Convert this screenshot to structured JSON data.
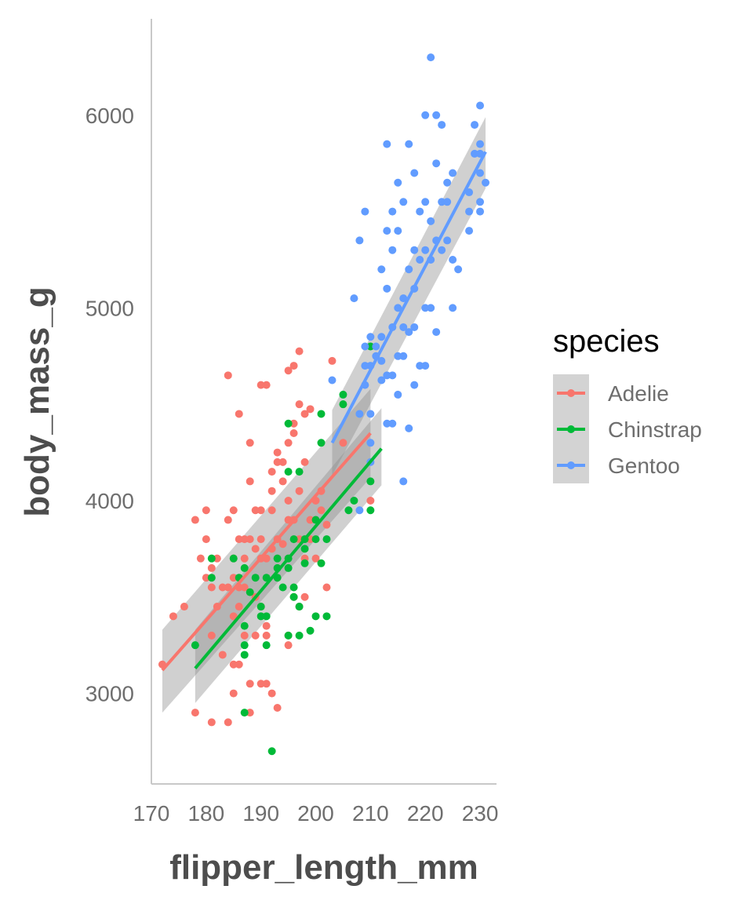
{
  "chart_data": {
    "type": "scatter",
    "xlabel": "flipper_length_mm",
    "ylabel": "body_mass_g",
    "xlim": [
      170,
      233
    ],
    "ylim": [
      2530,
      6500
    ],
    "xticks": [
      170,
      180,
      190,
      200,
      210,
      220,
      230
    ],
    "yticks": [
      3000,
      4000,
      5000,
      6000
    ],
    "grid": false,
    "legend": {
      "title": "species",
      "placement": "right"
    },
    "series": [
      {
        "name": "Adelie",
        "color": "#F8766D",
        "fit": {
          "x": [
            172,
            210
          ],
          "y": [
            3120,
            4350
          ],
          "band_start": [
            2900,
            3330
          ],
          "band_end": [
            4120,
            4580
          ]
        },
        "points": [
          [
            172,
            3150
          ],
          [
            174,
            3400
          ],
          [
            176,
            3450
          ],
          [
            178,
            3900
          ],
          [
            178,
            2900
          ],
          [
            179,
            3700
          ],
          [
            180,
            3950
          ],
          [
            180,
            3800
          ],
          [
            180,
            3600
          ],
          [
            181,
            3550
          ],
          [
            181,
            3650
          ],
          [
            181,
            3300
          ],
          [
            181,
            2850
          ],
          [
            182,
            3700
          ],
          [
            182,
            3450
          ],
          [
            183,
            3550
          ],
          [
            183,
            3200
          ],
          [
            184,
            3900
          ],
          [
            184,
            4650
          ],
          [
            184,
            3550
          ],
          [
            184,
            2850
          ],
          [
            185,
            3700
          ],
          [
            185,
            3950
          ],
          [
            185,
            3600
          ],
          [
            185,
            3400
          ],
          [
            185,
            3150
          ],
          [
            185,
            3000
          ],
          [
            186,
            3450
          ],
          [
            186,
            4450
          ],
          [
            186,
            3800
          ],
          [
            186,
            3550
          ],
          [
            186,
            3150
          ],
          [
            187,
            3300
          ],
          [
            187,
            3700
          ],
          [
            187,
            3800
          ],
          [
            187,
            3550
          ],
          [
            188,
            4300
          ],
          [
            188,
            4100
          ],
          [
            188,
            3800
          ],
          [
            188,
            3050
          ],
          [
            188,
            2900
          ],
          [
            189,
            3950
          ],
          [
            189,
            3750
          ],
          [
            189,
            3500
          ],
          [
            189,
            3300
          ],
          [
            190,
            3950
          ],
          [
            190,
            4600
          ],
          [
            190,
            3450
          ],
          [
            190,
            3050
          ],
          [
            190,
            3700
          ],
          [
            190,
            3800
          ],
          [
            191,
            4600
          ],
          [
            191,
            3700
          ],
          [
            191,
            3350
          ],
          [
            191,
            3050
          ],
          [
            191,
            3300
          ],
          [
            192,
            3950
          ],
          [
            192,
            4150
          ],
          [
            192,
            4050
          ],
          [
            192,
            3750
          ],
          [
            192,
            3000
          ],
          [
            193,
            4250
          ],
          [
            193,
            3800
          ],
          [
            193,
            4200
          ],
          [
            193,
            2925
          ],
          [
            194,
            4200
          ],
          [
            194,
            4100
          ],
          [
            194,
            3775
          ],
          [
            195,
            4675
          ],
          [
            195,
            4300
          ],
          [
            195,
            3900
          ],
          [
            195,
            4000
          ],
          [
            195,
            3300
          ],
          [
            195,
            3250
          ],
          [
            196,
            4700
          ],
          [
            196,
            4400
          ],
          [
            196,
            3500
          ],
          [
            196,
            4350
          ],
          [
            196,
            3900
          ],
          [
            197,
            4775
          ],
          [
            197,
            4500
          ],
          [
            197,
            4050
          ],
          [
            197,
            3450
          ],
          [
            197,
            3800
          ],
          [
            198,
            4450
          ],
          [
            198,
            4200
          ],
          [
            198,
            3700
          ],
          [
            198,
            3500
          ],
          [
            199,
            3900
          ],
          [
            199,
            4475
          ],
          [
            199,
            3800
          ],
          [
            200,
            4000
          ],
          [
            200,
            3700
          ],
          [
            201,
            4050
          ],
          [
            201,
            3950
          ],
          [
            202,
            3550
          ],
          [
            202,
            3875
          ],
          [
            203,
            4725
          ],
          [
            205,
            4300
          ],
          [
            210,
            4000
          ]
        ]
      },
      {
        "name": "Chinstrap",
        "color": "#00BA38",
        "fit": {
          "x": [
            178,
            212
          ],
          "y": [
            3130,
            4270
          ],
          "band_start": [
            2950,
            3330
          ],
          "band_end": [
            4080,
            4480
          ]
        },
        "points": [
          [
            178,
            3250
          ],
          [
            181,
            3700
          ],
          [
            181,
            3600
          ],
          [
            185,
            3700
          ],
          [
            186,
            3600
          ],
          [
            187,
            3650
          ],
          [
            187,
            3250
          ],
          [
            187,
            3200
          ],
          [
            187,
            2900
          ],
          [
            187,
            3350
          ],
          [
            188,
            3525
          ],
          [
            189,
            3600
          ],
          [
            190,
            3450
          ],
          [
            190,
            3400
          ],
          [
            191,
            3600
          ],
          [
            191,
            3400
          ],
          [
            191,
            3250
          ],
          [
            192,
            2700
          ],
          [
            193,
            3650
          ],
          [
            193,
            3600
          ],
          [
            193,
            3700
          ],
          [
            194,
            3550
          ],
          [
            195,
            4150
          ],
          [
            195,
            4400
          ],
          [
            195,
            3650
          ],
          [
            195,
            3700
          ],
          [
            195,
            3300
          ],
          [
            196,
            3550
          ],
          [
            196,
            3500
          ],
          [
            196,
            3800
          ],
          [
            197,
            4150
          ],
          [
            197,
            3450
          ],
          [
            197,
            3300
          ],
          [
            198,
            3800
          ],
          [
            198,
            3750
          ],
          [
            198,
            3675
          ],
          [
            199,
            3325
          ],
          [
            200,
            3800
          ],
          [
            200,
            3900
          ],
          [
            200,
            3400
          ],
          [
            201,
            4450
          ],
          [
            201,
            3675
          ],
          [
            201,
            4300
          ],
          [
            202,
            3400
          ],
          [
            202,
            3800
          ],
          [
            205,
            4550
          ],
          [
            205,
            4500
          ],
          [
            206,
            3950
          ],
          [
            207,
            4000
          ],
          [
            210,
            4800
          ],
          [
            210,
            4100
          ],
          [
            210,
            3950
          ]
        ]
      },
      {
        "name": "Gentoo",
        "color": "#619CFF",
        "fit": {
          "x": [
            203,
            231
          ],
          "y": [
            4300,
            5810
          ],
          "band_start": [
            4130,
            4470
          ],
          "band_end": [
            5620,
            5990
          ]
        },
        "points": [
          [
            203,
            4625
          ],
          [
            207,
            5050
          ],
          [
            208,
            5350
          ],
          [
            208,
            4450
          ],
          [
            208,
            3950
          ],
          [
            209,
            5500
          ],
          [
            209,
            4800
          ],
          [
            209,
            4700
          ],
          [
            209,
            4600
          ],
          [
            210,
            4850
          ],
          [
            210,
            4700
          ],
          [
            210,
            4450
          ],
          [
            210,
            4300
          ],
          [
            210,
            4200
          ],
          [
            211,
            4800
          ],
          [
            211,
            4750
          ],
          [
            212,
            5200
          ],
          [
            212,
            4850
          ],
          [
            212,
            4625
          ],
          [
            212,
            4725
          ],
          [
            213,
            5850
          ],
          [
            213,
            5400
          ],
          [
            213,
            5100
          ],
          [
            213,
            4650
          ],
          [
            213,
            4400
          ],
          [
            214,
            5500
          ],
          [
            214,
            5300
          ],
          [
            214,
            4900
          ],
          [
            214,
            4400
          ],
          [
            214,
            4650
          ],
          [
            215,
            5650
          ],
          [
            215,
            5400
          ],
          [
            215,
            5000
          ],
          [
            215,
            4750
          ],
          [
            215,
            4550
          ],
          [
            216,
            5550
          ],
          [
            216,
            5050
          ],
          [
            216,
            4900
          ],
          [
            216,
            4750
          ],
          [
            216,
            4100
          ],
          [
            217,
            5850
          ],
          [
            217,
            5200
          ],
          [
            217,
            4875
          ],
          [
            217,
            4375
          ],
          [
            218,
            5700
          ],
          [
            218,
            5300
          ],
          [
            218,
            5100
          ],
          [
            218,
            4900
          ],
          [
            218,
            4600
          ],
          [
            219,
            5500
          ],
          [
            219,
            5250
          ],
          [
            219,
            4700
          ],
          [
            220,
            6000
          ],
          [
            220,
            5550
          ],
          [
            220,
            5300
          ],
          [
            220,
            5000
          ],
          [
            220,
            4700
          ],
          [
            221,
            6300
          ],
          [
            221,
            5450
          ],
          [
            221,
            5250
          ],
          [
            221,
            5000
          ],
          [
            222,
            6000
          ],
          [
            222,
            5750
          ],
          [
            222,
            5350
          ],
          [
            222,
            4875
          ],
          [
            223,
            5950
          ],
          [
            223,
            5550
          ],
          [
            223,
            5300
          ],
          [
            224,
            5650
          ],
          [
            224,
            5550
          ],
          [
            224,
            5350
          ],
          [
            225,
            5700
          ],
          [
            225,
            5250
          ],
          [
            225,
            5000
          ],
          [
            226,
            5200
          ],
          [
            228,
            5600
          ],
          [
            228,
            5400
          ],
          [
            228,
            5500
          ],
          [
            229,
            5950
          ],
          [
            229,
            5800
          ],
          [
            230,
            5800
          ],
          [
            230,
            5700
          ],
          [
            230,
            6050
          ],
          [
            230,
            5550
          ],
          [
            230,
            5500
          ],
          [
            230,
            5850
          ],
          [
            231,
            5650
          ]
        ]
      }
    ]
  }
}
